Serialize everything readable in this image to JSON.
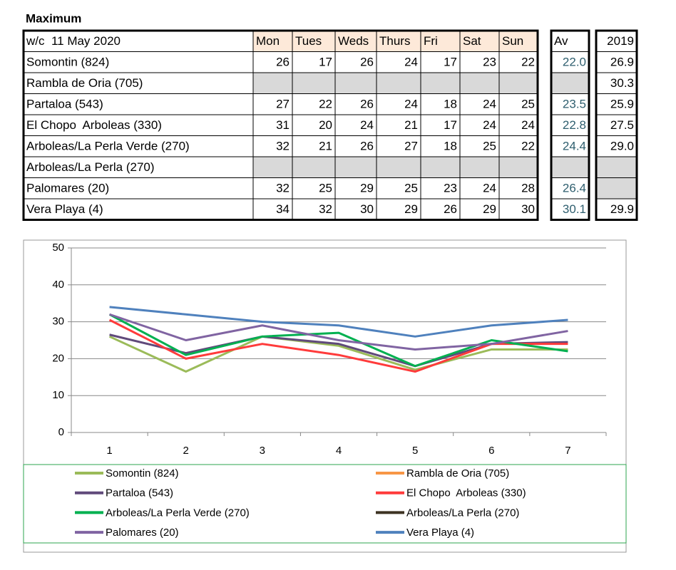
{
  "title": "Maximum",
  "table": {
    "header": [
      "w/c  11 May 2020",
      "Mon",
      "Tues",
      "Weds",
      "Thurs",
      "Fri",
      "Sat",
      "Sun",
      "Av",
      "2019"
    ],
    "rows": [
      [
        "Somontin (824)",
        26,
        17,
        26,
        24,
        17,
        23,
        22,
        "22.0",
        "26.9"
      ],
      [
        "Rambla de Oria (705)",
        null,
        null,
        null,
        null,
        null,
        null,
        null,
        null,
        "30.3"
      ],
      [
        "Partaloa (543)",
        27,
        22,
        26,
        24,
        18,
        24,
        25,
        "23.5",
        "25.9"
      ],
      [
        "El Chopo  Arboleas (330)",
        31,
        20,
        24,
        21,
        17,
        24,
        24,
        "22.8",
        "27.5"
      ],
      [
        "Arboleas/La Perla Verde (270)",
        32,
        21,
        26,
        27,
        18,
        25,
        22,
        "24.4",
        "29.0"
      ],
      [
        "Arboleas/La Perla (270)",
        null,
        null,
        null,
        null,
        null,
        null,
        null,
        null,
        null
      ],
      [
        "Palomares (20)",
        32,
        25,
        29,
        25,
        23,
        24,
        28,
        "26.4",
        null
      ],
      [
        "Vera Playa (4)",
        34,
        32,
        30,
        29,
        26,
        29,
        30,
        "30.1",
        "29.9"
      ]
    ]
  },
  "chart_data": {
    "type": "line",
    "categories": [
      1,
      2,
      3,
      4,
      5,
      6,
      7
    ],
    "ylim": [
      0,
      50
    ],
    "yticks": [
      0,
      10,
      20,
      30,
      40,
      50
    ],
    "grid": true,
    "series": [
      {
        "name": "Somontin (824)",
        "color": "#9bbb59",
        "values": [
          26,
          16.5,
          26,
          23.5,
          17,
          22.5,
          22.5
        ]
      },
      {
        "name": "Rambla de Oria (705)",
        "color": "#f79646",
        "values": [
          null,
          null,
          null,
          null,
          null,
          null,
          null
        ]
      },
      {
        "name": "Partaloa (543)",
        "color": "#604a7b",
        "values": [
          26.5,
          21.5,
          26,
          24,
          18,
          24,
          24.5
        ]
      },
      {
        "name": "El Chopo  Arboleas (330)",
        "color": "#ff3b3b",
        "values": [
          30.5,
          20,
          24,
          21,
          16.5,
          24,
          24
        ]
      },
      {
        "name": "Arboleas/La Perla Verde (270)",
        "color": "#00b050",
        "values": [
          32,
          21,
          26,
          27,
          18,
          25,
          22
        ]
      },
      {
        "name": "Arboleas/La Perla (270)",
        "color": "#3d3322",
        "values": [
          null,
          null,
          null,
          null,
          null,
          null,
          null
        ]
      },
      {
        "name": "Palomares (20)",
        "color": "#8064a2",
        "values": [
          32,
          25,
          29,
          25,
          22.5,
          24,
          27.5
        ]
      },
      {
        "name": "Vera Playa (4)",
        "color": "#4f81bd",
        "values": [
          34,
          32,
          30,
          29,
          26,
          29,
          30.5
        ]
      }
    ]
  }
}
